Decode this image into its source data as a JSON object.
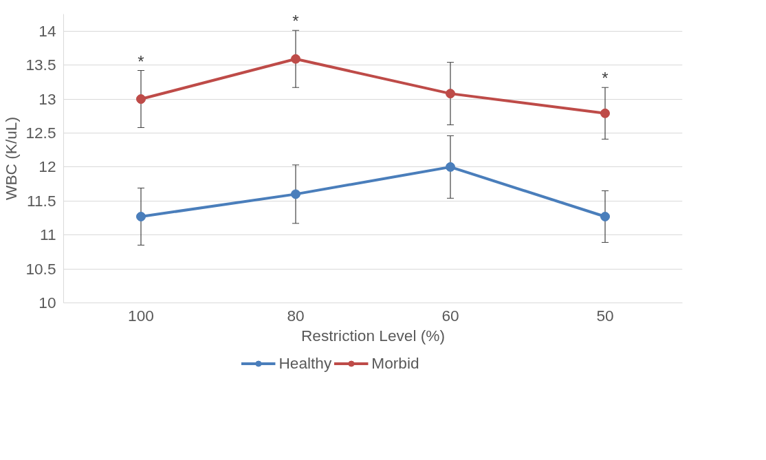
{
  "chart_data": {
    "type": "line",
    "xlabel": "Restriction Level (%)",
    "ylabel": "WBC (K/uL)",
    "categories": [
      "100",
      "80",
      "60",
      "50"
    ],
    "series": [
      {
        "name": "Healthy",
        "color": "#4a7ebb",
        "values": [
          11.27,
          11.6,
          12.0,
          11.27
        ],
        "errors": [
          0.42,
          0.43,
          0.46,
          0.38
        ]
      },
      {
        "name": "Morbid",
        "color": "#be4b48",
        "values": [
          13.0,
          13.59,
          13.08,
          12.79
        ],
        "errors": [
          0.42,
          0.42,
          0.46,
          0.38
        ]
      }
    ],
    "annotations": [
      {
        "text": "*",
        "x": "100",
        "y": 13.42
      },
      {
        "text": "*",
        "x": "80",
        "y": 14.01
      },
      {
        "text": "*",
        "x": "50",
        "y": 13.17
      }
    ],
    "ylim": [
      10,
      14.25
    ],
    "yticks": [
      10,
      10.5,
      11,
      11.5,
      12,
      12.5,
      13,
      13.5,
      14
    ],
    "grid": "y",
    "legend": "bottom",
    "marker": "circle",
    "line_style": "solid"
  }
}
